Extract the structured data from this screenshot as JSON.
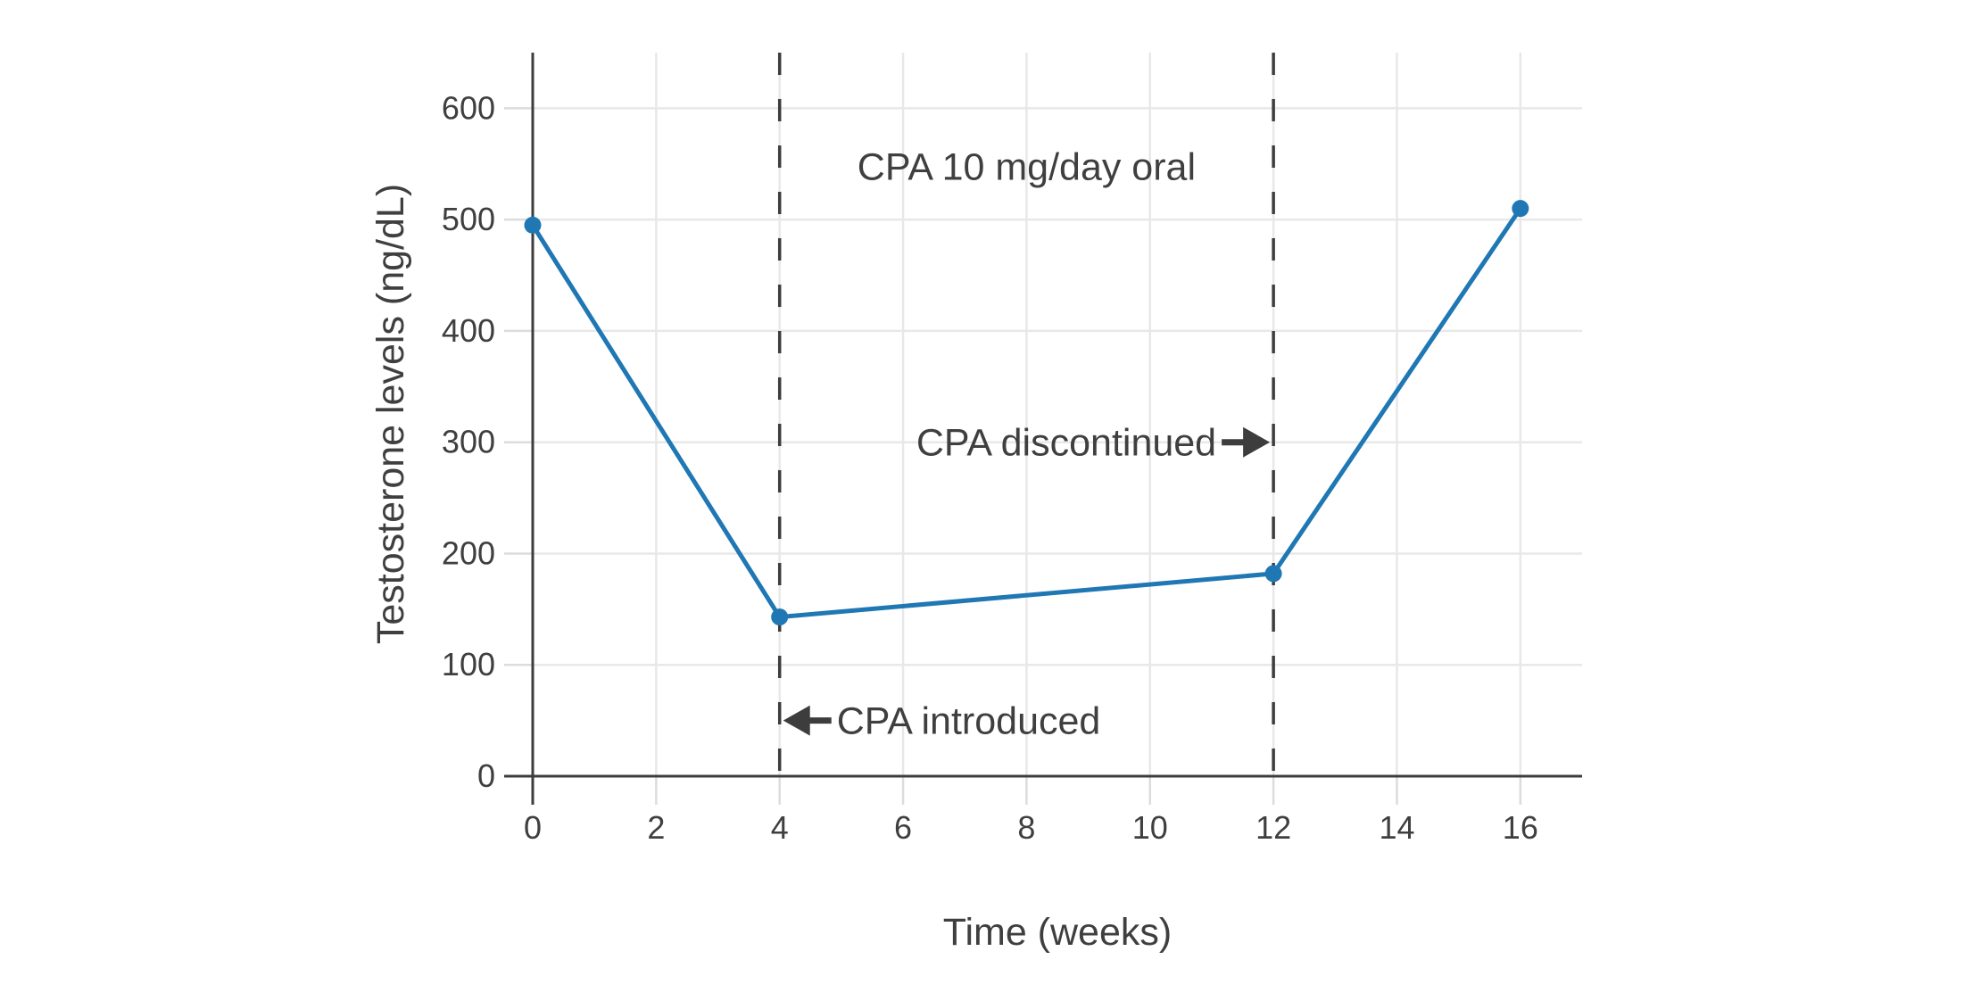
{
  "chart_data": {
    "type": "line",
    "xlabel": "Time (weeks)",
    "ylabel": "Testosterone levels (ng/dL)",
    "series": [
      {
        "name": "Testosterone levels",
        "x": [
          0,
          4,
          12,
          16
        ],
        "y": [
          495,
          143,
          182,
          510
        ]
      }
    ],
    "xticks": [
      0,
      2,
      4,
      6,
      8,
      10,
      12,
      14,
      16
    ],
    "yticks": [
      0,
      100,
      200,
      300,
      400,
      500,
      600
    ],
    "xlim": [
      0,
      17
    ],
    "ylim": [
      0,
      650
    ],
    "grid": true,
    "legend": false,
    "marker": "circle",
    "line_color": "#1f77b4",
    "axis_color": "#3d3d3d",
    "grid_color": "#e8e8e8",
    "tick_color": "#dcdcdc",
    "text_color": "#3f3f3f",
    "vlines": [
      {
        "x": 4,
        "style": "dashed",
        "color": "#3d3d3d"
      },
      {
        "x": 12,
        "style": "dashed",
        "color": "#3d3d3d"
      }
    ],
    "annotations": [
      {
        "text": "CPA 10 mg/day oral",
        "x": 8,
        "y": 548,
        "arrow": null
      },
      {
        "text": "CPA discontinued",
        "x": 12,
        "y": 300,
        "arrow": "right"
      },
      {
        "text": "CPA introduced",
        "x": 4,
        "y": 50,
        "arrow": "left"
      }
    ]
  }
}
